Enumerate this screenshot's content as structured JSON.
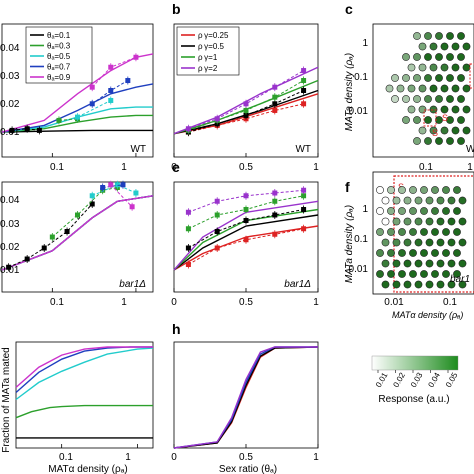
{
  "chart_data": [
    {
      "panel": "a",
      "type": "line",
      "xscale": "log",
      "xlim": [
        0.025,
        1.6
      ],
      "ylim": [
        0.005,
        0.045
      ],
      "ylabel": "",
      "xlabel": "",
      "xticks": [
        0.1,
        1
      ],
      "xticklabels": [
        "0.1",
        "1"
      ],
      "yticks": [
        0.01,
        0.02,
        0.03,
        0.04
      ],
      "yticklabels": [
        "0.01",
        "0.02",
        "0.03",
        "0.04"
      ],
      "grid": false,
      "corner_label": "WT",
      "legend": {
        "placement": "top-left",
        "entries": [
          "θₐ=0.1",
          "θₐ=0.3",
          "θₐ=0.5",
          "θₐ=0.7",
          "θₐ=0.9"
        ]
      },
      "series": [
        {
          "name": "θₐ=0.1",
          "color": "#000000",
          "curve": {
            "x": [
              0.025,
              0.1,
              0.3,
              1,
              1.6
            ],
            "y": [
              0.0125,
              0.0128,
              0.013,
              0.013,
              0.013
            ]
          },
          "points": {
            "x": [
              0.033,
              0.05,
              0.07
            ],
            "y": [
              0.013,
              0.0135,
              0.013
            ]
          }
        },
        {
          "name": "θₐ=0.3",
          "color": "#2ca02c",
          "curve": {
            "x": [
              0.025,
              0.08,
              0.2,
              0.5,
              1,
              1.6
            ],
            "y": [
              0.0125,
              0.0135,
              0.0155,
              0.017,
              0.0175,
              0.0175
            ]
          },
          "points": {
            "x": [
              0.12,
              0.2
            ],
            "y": [
              0.016,
              0.0165
            ]
          }
        },
        {
          "name": "θₐ=0.5",
          "color": "#22cccc",
          "curve": {
            "x": [
              0.025,
              0.08,
              0.2,
              0.5,
              1,
              1.6
            ],
            "y": [
              0.0125,
              0.014,
              0.017,
              0.0195,
              0.02,
              0.02
            ]
          },
          "points": {
            "x": [
              0.2,
              0.5
            ],
            "y": [
              0.017,
              0.022
            ]
          }
        },
        {
          "name": "θₐ=0.7",
          "color": "#1f3fbf",
          "curve": {
            "x": [
              0.025,
              0.08,
              0.2,
              0.5,
              1,
              1.6
            ],
            "y": [
              0.0125,
              0.0145,
              0.019,
              0.024,
              0.026,
              0.027
            ]
          },
          "points": {
            "x": [
              0.3,
              0.5,
              0.8
            ],
            "y": [
              0.021,
              0.025,
              0.028
            ]
          }
        },
        {
          "name": "θₐ=0.9",
          "color": "#cc33cc",
          "curve": {
            "x": [
              0.025,
              0.08,
              0.2,
              0.5,
              1,
              1.6
            ],
            "y": [
              0.0125,
              0.016,
              0.024,
              0.031,
              0.035,
              0.036
            ]
          },
          "points": {
            "x": [
              0.3,
              0.5,
              1.0
            ],
            "y": [
              0.026,
              0.032,
              0.035
            ]
          }
        }
      ]
    },
    {
      "panel": "b",
      "type": "line",
      "xlim": [
        0,
        1
      ],
      "ylim": [
        0.005,
        0.045
      ],
      "xticks": [
        0,
        0.5,
        1
      ],
      "xticklabels": [
        "0",
        "0.5",
        "1"
      ],
      "corner_label": "WT",
      "legend": {
        "placement": "top-left",
        "entries": [
          "ρ γ=0.25",
          "ρ γ=0.5",
          "ρ γ=1",
          "ρ γ=2"
        ]
      },
      "series": [
        {
          "name": "ρ γ=0.25",
          "color": "#dd2222",
          "curve": {
            "x": [
              0,
              0.3,
              0.6,
              1
            ],
            "y": [
              0.012,
              0.0145,
              0.0185,
              0.024
            ]
          },
          "points": {
            "x": [
              0.1,
              0.3,
              0.5,
              0.7,
              0.9
            ],
            "y": [
              0.0125,
              0.0145,
              0.0165,
              0.019,
              0.021
            ]
          }
        },
        {
          "name": "ρ γ=0.5",
          "color": "#000000",
          "curve": {
            "x": [
              0,
              0.3,
              0.6,
              1
            ],
            "y": [
              0.012,
              0.015,
              0.019,
              0.025
            ]
          },
          "points": {
            "x": [
              0.1,
              0.3,
              0.5,
              0.7,
              0.9
            ],
            "y": [
              0.0125,
              0.015,
              0.0175,
              0.021,
              0.025
            ]
          }
        },
        {
          "name": "ρ γ=1",
          "color": "#2ca02c",
          "curve": {
            "x": [
              0,
              0.3,
              0.6,
              1
            ],
            "y": [
              0.012,
              0.016,
              0.021,
              0.028
            ]
          },
          "points": {
            "x": [
              0.1,
              0.3,
              0.5,
              0.7,
              0.9
            ],
            "y": [
              0.013,
              0.016,
              0.019,
              0.023,
              0.028
            ]
          }
        },
        {
          "name": "ρ γ=2",
          "color": "#9933cc",
          "curve": {
            "x": [
              0,
              0.3,
              0.6,
              1
            ],
            "y": [
              0.012,
              0.017,
              0.024,
              0.032
            ]
          },
          "points": {
            "x": [
              0.1,
              0.3,
              0.5,
              0.7,
              0.9
            ],
            "y": [
              0.0135,
              0.0165,
              0.021,
              0.026,
              0.031
            ]
          }
        }
      ]
    },
    {
      "panel": "c",
      "type": "scatter",
      "xscale": "log",
      "yscale": "log",
      "xlabel": "",
      "ylabel": "MATa density (ρₐ)",
      "yticks": [
        1,
        0.1,
        0.01
      ],
      "yticklabels": [
        "1",
        "0.1",
        "0.01"
      ],
      "xticks": [
        0.1,
        1
      ],
      "xticklabels": [
        "0.1",
        "1"
      ],
      "corner_label": "WT",
      "annotations": [
        "S",
        "S"
      ],
      "response_levels": [
        0,
        0.01,
        0.02,
        0.03,
        0.04,
        0.05
      ]
    },
    {
      "panel": "d",
      "type": "line",
      "xscale": "log",
      "xlim": [
        0.025,
        1.6
      ],
      "ylim": [
        0.005,
        0.045
      ],
      "yticklabels": [
        "0.01",
        "0.02",
        "0.03",
        "0.04"
      ],
      "xticks": [
        0.1,
        1
      ],
      "xticklabels": [
        "0.1",
        "1"
      ],
      "corner_label": "bar1Δ",
      "series": [
        {
          "name": "",
          "color": "#000000",
          "curve": {
            "x": [
              0.025,
              0.1,
              0.3,
              0.6,
              1.6
            ],
            "y": [
              0.013,
              0.02,
              0.032,
              0.038,
              0.04
            ]
          },
          "points": {
            "x": [
              0.03,
              0.05,
              0.08,
              0.15,
              0.3
            ],
            "y": [
              0.014,
              0.017,
              0.021,
              0.027,
              0.037
            ]
          }
        },
        {
          "name": "",
          "color": "#2ca02c",
          "curve": {
            "x": [
              0.025,
              0.1,
              0.3,
              0.6,
              1.6
            ],
            "y": [
              0.013,
              0.02,
              0.032,
              0.038,
              0.04
            ]
          },
          "points": {
            "x": [
              0.1,
              0.2,
              0.4,
              0.6
            ],
            "y": [
              0.025,
              0.033,
              0.042,
              0.043
            ]
          }
        },
        {
          "name": "",
          "color": "#22cccc",
          "curve": {
            "x": [
              0.025,
              0.1,
              0.3,
              0.6,
              1.6
            ],
            "y": [
              0.013,
              0.02,
              0.032,
              0.038,
              0.04
            ]
          },
          "points": {
            "x": [
              0.3,
              0.6,
              1.0
            ],
            "y": [
              0.04,
              0.044,
              0.041
            ]
          }
        },
        {
          "name": "",
          "color": "#1f3fbf",
          "curve": {
            "x": [
              0.025,
              0.1,
              0.3,
              0.6,
              1.6
            ],
            "y": [
              0.013,
              0.02,
              0.032,
              0.038,
              0.04
            ]
          },
          "points": {
            "x": [
              0.4,
              0.7
            ],
            "y": [
              0.043,
              0.044
            ]
          }
        },
        {
          "name": "",
          "color": "#cc33cc",
          "curve": {
            "x": [
              0.025,
              0.1,
              0.3,
              0.6,
              1.6
            ],
            "y": [
              0.013,
              0.02,
              0.032,
              0.038,
              0.04
            ]
          },
          "points": {
            "x": [
              0.5,
              0.9
            ],
            "y": [
              0.044,
              0.036
            ]
          }
        }
      ]
    },
    {
      "panel": "e",
      "type": "line",
      "xlim": [
        0,
        1
      ],
      "ylim": [
        0.005,
        0.045
      ],
      "xticks": [
        0,
        0.5,
        1
      ],
      "xticklabels": [
        "0",
        "0.5",
        "1"
      ],
      "corner_label": "bar1Δ",
      "series": [
        {
          "name": "",
          "color": "#dd2222",
          "curve": {
            "x": [
              0,
              0.2,
              0.5,
              1
            ],
            "y": [
              0.013,
              0.019,
              0.025,
              0.029
            ]
          },
          "points": {
            "x": [
              0.1,
              0.3,
              0.5,
              0.7,
              0.9
            ],
            "y": [
              0.015,
              0.021,
              0.024,
              0.026,
              0.028
            ]
          }
        },
        {
          "name": "",
          "color": "#000000",
          "curve": {
            "x": [
              0,
              0.2,
              0.5,
              1
            ],
            "y": [
              0.013,
              0.021,
              0.029,
              0.033
            ]
          },
          "points": {
            "x": [
              0.1,
              0.3,
              0.5,
              0.7,
              0.9
            ],
            "y": [
              0.021,
              0.027,
              0.031,
              0.033,
              0.035
            ]
          }
        },
        {
          "name": "",
          "color": "#2ca02c",
          "curve": {
            "x": [
              0,
              0.2,
              0.5,
              1
            ],
            "y": [
              0.013,
              0.023,
              0.031,
              0.035
            ]
          },
          "points": {
            "x": [
              0.1,
              0.3,
              0.5,
              0.7,
              0.9
            ],
            "y": [
              0.028,
              0.033,
              0.035,
              0.038,
              0.04
            ]
          }
        },
        {
          "name": "",
          "color": "#9933cc",
          "curve": {
            "x": [
              0,
              0.2,
              0.5,
              1
            ],
            "y": [
              0.013,
              0.025,
              0.034,
              0.038
            ]
          },
          "points": {
            "x": [
              0.1,
              0.3,
              0.5,
              0.7,
              0.9
            ],
            "y": [
              0.034,
              0.038,
              0.04,
              0.041,
              0.042
            ]
          }
        }
      ]
    },
    {
      "panel": "f",
      "type": "scatter",
      "xscale": "log",
      "yscale": "log",
      "xlabel": "MATα density (ρₐ)",
      "ylabel": "MATa density (ρₐ)",
      "yticks": [
        1,
        0.1,
        0.01
      ],
      "yticklabels": [
        "1",
        "0.1",
        "0.01"
      ],
      "xticks": [
        0.01,
        0.1
      ],
      "xticklabels": [
        "0.01",
        "0.1"
      ],
      "corner_label": "bar1",
      "annotations": [
        "S"
      ]
    },
    {
      "panel": "g",
      "type": "line",
      "xscale": "log",
      "xlim": [
        0.025,
        1.6
      ],
      "ylim": [
        0,
        1.05
      ],
      "ylabel": "Fraction of MATa mated",
      "xlabel": "MATα density (ρₐ)",
      "xticks": [
        0.1,
        1
      ],
      "xticklabels": [
        "0.1",
        "1"
      ],
      "series": [
        {
          "name": "",
          "color": "#000000",
          "x": [
            0.025,
            1.6
          ],
          "y": [
            0.1,
            0.1
          ]
        },
        {
          "name": "",
          "color": "#2ca02c",
          "x": [
            0.025,
            0.04,
            0.07,
            0.1,
            0.2,
            1.6
          ],
          "y": [
            0.3,
            0.36,
            0.4,
            0.41,
            0.42,
            0.42
          ]
        },
        {
          "name": "",
          "color": "#22cccc",
          "x": [
            0.025,
            0.05,
            0.1,
            0.2,
            0.4,
            1,
            1.6
          ],
          "y": [
            0.48,
            0.65,
            0.76,
            0.85,
            0.93,
            0.98,
            0.99
          ]
        },
        {
          "name": "",
          "color": "#1f3fbf",
          "x": [
            0.025,
            0.05,
            0.1,
            0.2,
            0.4,
            0.8,
            1.6
          ],
          "y": [
            0.55,
            0.75,
            0.88,
            0.96,
            0.99,
            1.0,
            1.0
          ]
        },
        {
          "name": "",
          "color": "#cc33cc",
          "x": [
            0.025,
            0.05,
            0.1,
            0.2,
            0.4,
            0.8,
            1.6
          ],
          "y": [
            0.6,
            0.8,
            0.92,
            0.98,
            1.0,
            1.0,
            1.0
          ]
        }
      ]
    },
    {
      "panel": "h",
      "type": "line",
      "xlim": [
        0,
        1
      ],
      "ylim": [
        0,
        1.05
      ],
      "xlabel": "Sex ratio (θₐ)",
      "xticks": [
        0,
        0.5,
        1
      ],
      "xticklabels": [
        "0",
        "0.5",
        "1"
      ],
      "series": [
        {
          "name": "",
          "color": "#dd2222",
          "x": [
            0,
            0.3,
            0.4,
            0.5,
            0.6,
            0.7,
            1
          ],
          "y": [
            0,
            0.05,
            0.25,
            0.6,
            0.9,
            0.99,
            1
          ]
        },
        {
          "name": "",
          "color": "#000000",
          "x": [
            0,
            0.3,
            0.4,
            0.5,
            0.6,
            0.7,
            1
          ],
          "y": [
            0,
            0.05,
            0.26,
            0.62,
            0.91,
            0.99,
            1
          ]
        },
        {
          "name": "",
          "color": "#1f3fbf",
          "x": [
            0,
            0.3,
            0.4,
            0.5,
            0.6,
            0.7,
            1
          ],
          "y": [
            0,
            0.06,
            0.28,
            0.65,
            0.93,
            1.0,
            1
          ]
        },
        {
          "name": "",
          "color": "#9933cc",
          "x": [
            0,
            0.3,
            0.4,
            0.5,
            0.6,
            0.7,
            1
          ],
          "y": [
            0,
            0.06,
            0.3,
            0.68,
            0.95,
            1.0,
            1
          ]
        }
      ]
    }
  ],
  "colorbar": {
    "ticklabels": [
      "0.01",
      "0.02",
      "0.03",
      "0.04",
      "0.05"
    ],
    "label": "Response (a.u.)",
    "colors": [
      "#ffffff",
      "#1e8c1e"
    ]
  },
  "panel_letters": [
    "b",
    "c",
    "e",
    "f",
    "h"
  ]
}
